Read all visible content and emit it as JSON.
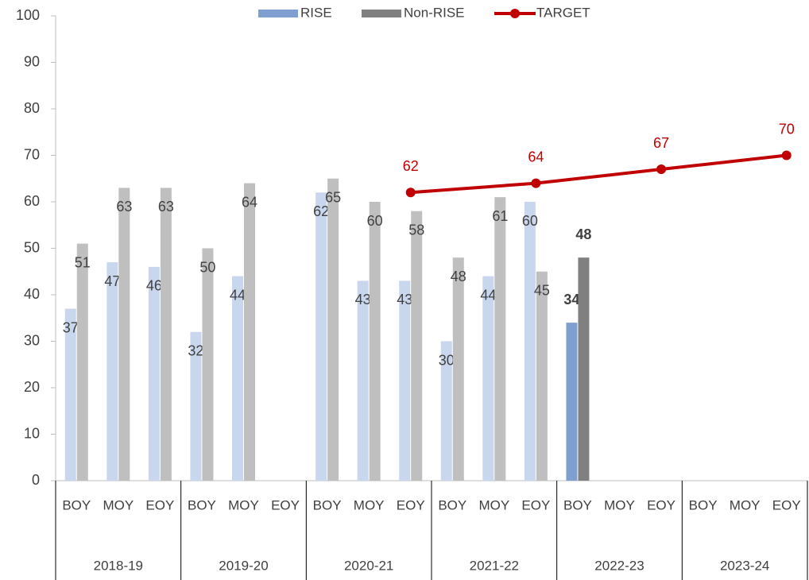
{
  "chart_data": {
    "type": "bar",
    "categories": [
      "BOY",
      "MOY",
      "EOY",
      "BOY",
      "MOY",
      "EOY",
      "BOY",
      "MOY",
      "EOY",
      "BOY",
      "MOY",
      "EOY",
      "BOY",
      "MOY",
      "EOY",
      "BOY",
      "MOY",
      "EOY"
    ],
    "groups": [
      "2018-19",
      "2019-20",
      "2020-21",
      "2021-22",
      "2022-23",
      "2023-24"
    ],
    "highlight": "2022-23",
    "series": [
      {
        "name": "RISE",
        "type": "bar",
        "color": "#c9d7ee",
        "highlight_color": "#7f9fd0",
        "values": [
          37,
          47,
          46,
          32,
          44,
          null,
          62,
          43,
          43,
          30,
          44,
          60,
          34,
          null,
          null,
          null,
          null,
          null
        ]
      },
      {
        "name": "Non-RISE",
        "type": "bar",
        "color": "#bfbfbf",
        "highlight_color": "#808080",
        "values": [
          51,
          63,
          63,
          50,
          64,
          null,
          65,
          60,
          58,
          48,
          61,
          45,
          48,
          null,
          null,
          null,
          null,
          null
        ]
      },
      {
        "name": "TARGET",
        "type": "line",
        "color": "#c00000",
        "x": [
          "2020-21",
          "2021-22",
          "2022-23",
          "2023-24"
        ],
        "values": [
          62,
          64,
          67,
          70
        ]
      }
    ],
    "ylim": [
      0,
      100
    ],
    "yticks": [
      0,
      10,
      20,
      30,
      40,
      50,
      60,
      70,
      80,
      90,
      100
    ]
  }
}
